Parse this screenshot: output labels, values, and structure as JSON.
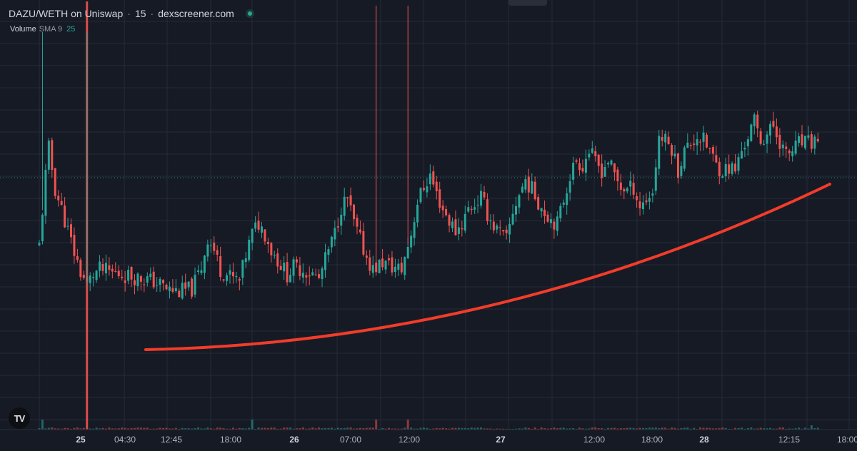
{
  "header": {
    "pair": "DAZU/WETH on Uniswap",
    "separator": "·",
    "interval": "15",
    "source": "dexscreener.com"
  },
  "indicator": {
    "name": "Volume",
    "sma_label": "SMA 9",
    "value": "25"
  },
  "logo_text": "TV",
  "colors": {
    "background": "#161a25",
    "up": "#26a69a",
    "down": "#ef5350",
    "trendline": "#f23c2a",
    "grid": "#262b38"
  },
  "chart_data": {
    "type": "candlestick",
    "x_ticks": [
      {
        "label": "25",
        "bold": true
      },
      {
        "label": "04:30",
        "bold": false
      },
      {
        "label": "12:45",
        "bold": false
      },
      {
        "label": "18:00",
        "bold": false
      },
      {
        "label": "26",
        "bold": true
      },
      {
        "label": "07:00",
        "bold": false
      },
      {
        "label": "12:00",
        "bold": false
      },
      {
        "label": "27",
        "bold": true
      },
      {
        "label": "12:00",
        "bold": false
      },
      {
        "label": "18:00",
        "bold": false
      },
      {
        "label": "28",
        "bold": true
      },
      {
        "label": "12:15",
        "bold": false
      },
      {
        "label": "18:00",
        "bold": false
      }
    ],
    "y_axis_visible": false,
    "grid": true,
    "last_price_line": true,
    "trendline": "curved upward support line drawn beneath the candles",
    "close_path": [
      [
        0,
        43
      ],
      [
        2,
        72
      ],
      [
        3,
        83
      ],
      [
        5,
        66
      ],
      [
        7,
        58
      ],
      [
        9,
        49
      ],
      [
        11,
        40
      ],
      [
        13,
        32
      ],
      [
        15,
        27
      ],
      [
        17,
        31
      ],
      [
        19,
        33
      ],
      [
        22,
        32
      ],
      [
        26,
        31
      ],
      [
        30,
        30
      ],
      [
        34,
        29
      ],
      [
        38,
        27
      ],
      [
        40,
        25
      ],
      [
        44,
        24
      ],
      [
        48,
        25
      ],
      [
        51,
        34
      ],
      [
        53,
        46
      ],
      [
        55,
        41
      ],
      [
        57,
        33
      ],
      [
        60,
        30
      ],
      [
        63,
        28
      ],
      [
        65,
        39
      ],
      [
        67,
        48
      ],
      [
        69,
        52
      ],
      [
        71,
        48
      ],
      [
        73,
        41
      ],
      [
        76,
        35
      ],
      [
        78,
        31
      ],
      [
        80,
        34
      ],
      [
        83,
        33
      ],
      [
        86,
        31
      ],
      [
        88,
        29
      ],
      [
        90,
        37
      ],
      [
        93,
        48
      ],
      [
        95,
        59
      ],
      [
        97,
        62
      ],
      [
        99,
        52
      ],
      [
        101,
        45
      ],
      [
        103,
        38
      ],
      [
        105,
        33
      ],
      [
        108,
        36
      ],
      [
        111,
        34
      ],
      [
        114,
        33
      ],
      [
        117,
        48
      ],
      [
        119,
        61
      ],
      [
        121,
        67
      ],
      [
        123,
        72
      ],
      [
        125,
        64
      ],
      [
        127,
        58
      ],
      [
        129,
        53
      ],
      [
        131,
        49
      ],
      [
        133,
        52
      ],
      [
        135,
        58
      ],
      [
        137,
        60
      ],
      [
        139,
        63
      ],
      [
        141,
        56
      ],
      [
        143,
        51
      ],
      [
        145,
        48
      ],
      [
        147,
        45
      ],
      [
        149,
        57
      ],
      [
        151,
        64
      ],
      [
        153,
        70
      ],
      [
        155,
        66
      ],
      [
        157,
        61
      ],
      [
        159,
        57
      ],
      [
        161,
        54
      ],
      [
        163,
        52
      ],
      [
        165,
        62
      ],
      [
        167,
        72
      ],
      [
        169,
        78
      ],
      [
        171,
        76
      ],
      [
        173,
        82
      ],
      [
        175,
        77
      ],
      [
        177,
        74
      ],
      [
        179,
        78
      ],
      [
        181,
        72
      ],
      [
        183,
        67
      ],
      [
        185,
        66
      ],
      [
        187,
        67
      ],
      [
        189,
        59
      ],
      [
        191,
        62
      ],
      [
        193,
        65
      ],
      [
        195,
        88
      ],
      [
        197,
        86
      ],
      [
        199,
        83
      ],
      [
        201,
        74
      ],
      [
        203,
        82
      ],
      [
        205,
        85
      ],
      [
        207,
        88
      ],
      [
        209,
        86
      ],
      [
        211,
        82
      ],
      [
        213,
        76
      ],
      [
        215,
        74
      ],
      [
        217,
        75
      ],
      [
        219,
        74
      ],
      [
        221,
        82
      ],
      [
        223,
        88
      ],
      [
        225,
        94
      ],
      [
        227,
        86
      ],
      [
        229,
        89
      ],
      [
        231,
        92
      ],
      [
        233,
        86
      ],
      [
        235,
        80
      ],
      [
        237,
        82
      ],
      [
        239,
        85
      ],
      [
        241,
        85
      ],
      [
        243,
        85
      ],
      [
        245,
        87
      ]
    ]
  }
}
